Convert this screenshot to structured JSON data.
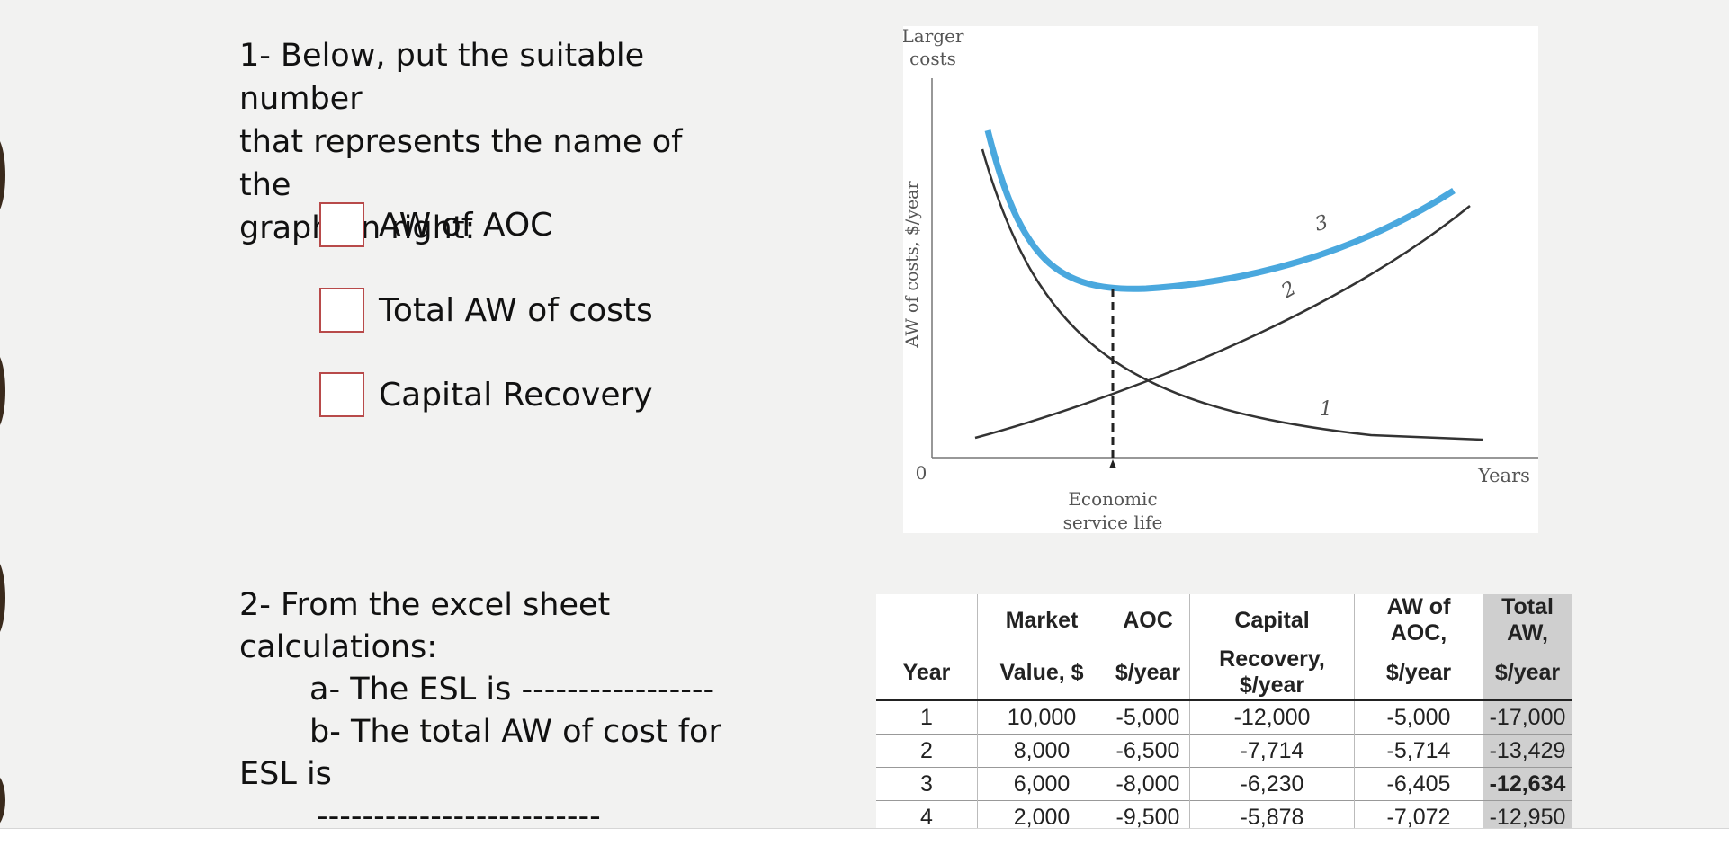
{
  "question1": {
    "line1": "1- Below, put the suitable number",
    "line2": "that represents the name of the",
    "line3": "graph on right:",
    "options": [
      "AW of AOC",
      "Total AW of costs",
      "Capital Recovery"
    ]
  },
  "question2": {
    "line1": "2- From the excel sheet",
    "line2": "calculations:",
    "line3": "a- The ESL is -----------------",
    "line4": "b- The total AW of cost for",
    "line5": "ESL is",
    "line6": "-------------------------"
  },
  "graph": {
    "y_top_label_1": "Larger",
    "y_top_label_2": "costs",
    "y_axis_label": "AW of costs, $/year",
    "origin_label": "0",
    "x_axis_label": "Years",
    "esl_label_1": "Economic",
    "esl_label_2": "service life",
    "curve_labels": [
      "1",
      "2",
      "3"
    ],
    "total_curve_color": "#4aa8de"
  },
  "table": {
    "header_row1": [
      "",
      "Market",
      "AOC",
      "Capital",
      "AW of AOC,",
      "Total AW,"
    ],
    "header_row2": [
      "Year",
      "Value, $",
      "$/year",
      "Recovery, $/year",
      "$/year",
      "$/year"
    ],
    "rows": [
      [
        "1",
        "10,000",
        "-5,000",
        "-12,000",
        "-5,000",
        "-17,000"
      ],
      [
        "2",
        "8,000",
        "-6,500",
        "-7,714",
        "-5,714",
        "-13,429"
      ],
      [
        "3",
        "6,000",
        "-8,000",
        "-6,230",
        "-6,405",
        "-12,634"
      ],
      [
        "4",
        "2,000",
        "-9,500",
        "-5,878",
        "-7,072",
        "-12,950"
      ]
    ]
  }
}
